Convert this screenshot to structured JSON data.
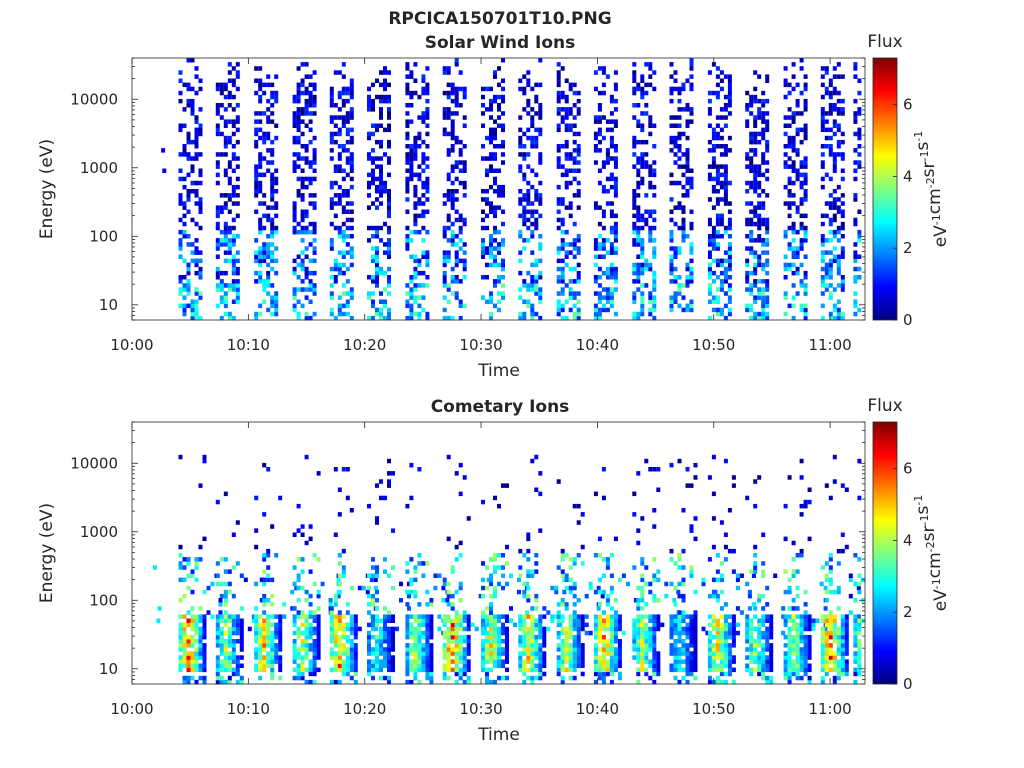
{
  "figure_title": "RPCICA150701T10.PNG",
  "colormap": {
    "name": "jet",
    "stops": [
      "#00007f",
      "#0000ff",
      "#007fff",
      "#00ffff",
      "#7fff7f",
      "#ffff00",
      "#ff7f00",
      "#ff0000",
      "#7f0000"
    ]
  },
  "chart_data": [
    {
      "type": "heatmap",
      "title": "Solar Wind Ions",
      "xlabel": "Time",
      "ylabel": "Energy (eV)",
      "x_ticks": [
        "10:00",
        "10:10",
        "10:20",
        "10:30",
        "10:40",
        "10:50",
        "11:00"
      ],
      "x_range": [
        "10:00",
        "11:03"
      ],
      "y_scale": "log",
      "y_ticks": [
        10,
        100,
        1000,
        10000
      ],
      "y_range": [
        6,
        40000
      ],
      "colorbar": {
        "title": "Flux",
        "label_parts": [
          "eV",
          "-1",
          "cm",
          "-2",
          "sr",
          "-1",
          "s",
          "-1"
        ],
        "ticks": [
          0,
          2,
          4,
          6
        ],
        "range": [
          0,
          7.3
        ]
      },
      "sweep_start_minutes": [
        4,
        7.2,
        10.5,
        13.8,
        17,
        20.2,
        23.5,
        26.7,
        30,
        33.2,
        36.5,
        39.7,
        43,
        46.2,
        49.5,
        52.7,
        56,
        59.2,
        62
      ],
      "low_energy_flux_peak": 3.5,
      "high_energy_flux_typical": 0.8,
      "energy_extent_eV": [
        6,
        15000
      ]
    },
    {
      "type": "heatmap",
      "title": "Cometary Ions",
      "xlabel": "Time",
      "ylabel": "Energy (eV)",
      "x_ticks": [
        "10:00",
        "10:10",
        "10:20",
        "10:30",
        "10:40",
        "10:50",
        "11:00"
      ],
      "x_range": [
        "10:00",
        "11:03"
      ],
      "y_scale": "log",
      "y_ticks": [
        10,
        100,
        1000,
        10000
      ],
      "y_range": [
        6,
        40000
      ],
      "colorbar": {
        "title": "Flux",
        "label_parts": [
          "eV",
          "-1",
          "cm",
          "-2",
          "sr",
          "-1",
          "s",
          "-1"
        ],
        "ticks": [
          0,
          2,
          4,
          6
        ],
        "range": [
          0,
          7.3
        ]
      },
      "peak_energy_eV": [
        15,
        50
      ],
      "peak_flux": 6.5,
      "burst_start_minutes": [
        4,
        7.2,
        10.5,
        13.8,
        17,
        20.2,
        23.5,
        26.7,
        30,
        33.2,
        36.5,
        39.7,
        43,
        46.2,
        49.5,
        52.7,
        56,
        59.2,
        62
      ],
      "burst_peak_flux": [
        6.3,
        4.5,
        5.6,
        4.8,
        6.2,
        3.5,
        4.6,
        6.6,
        5.0,
        5.3,
        5.0,
        6.0,
        4.6,
        3.2,
        5.5,
        4.4,
        4.6,
        6.5,
        5.0
      ]
    }
  ]
}
